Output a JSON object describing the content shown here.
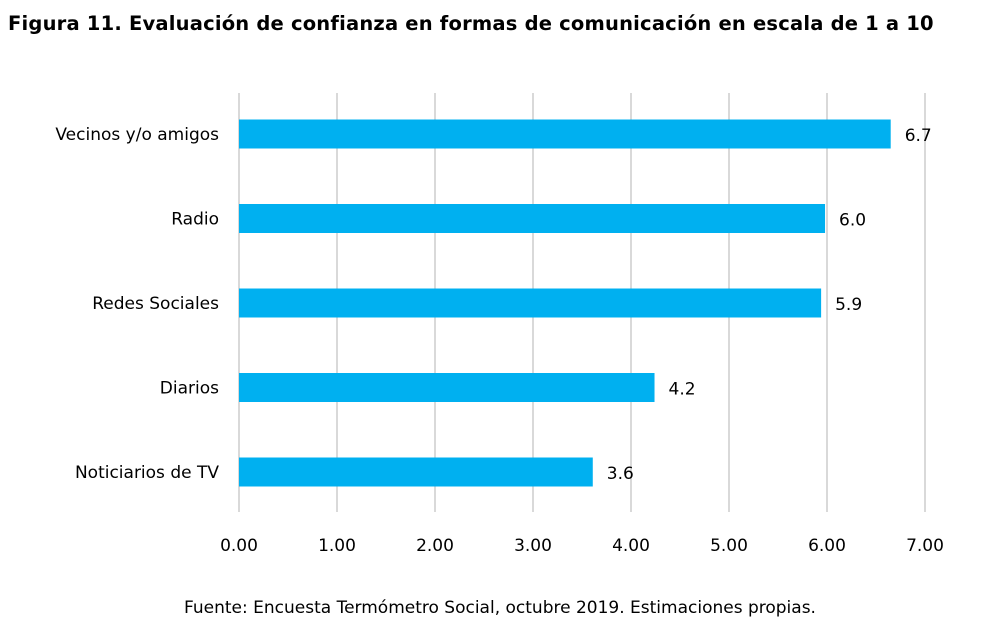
{
  "header": {
    "figure_label": "Figura 11",
    "title_text": ". Evaluación de confianza en formas de comunicación en escala de 1 a 10"
  },
  "footer": {
    "source": "Fuente: Encuesta Termómetro Social, octubre 2019. Estimaciones propias."
  },
  "colors": {
    "bar": "#00B0F0",
    "grid": "#D9D9D9"
  },
  "chart_data": {
    "type": "bar",
    "orientation": "horizontal",
    "categories": [
      "Vecinos y/o amigos",
      "Radio",
      "Redes Sociales",
      "Diarios",
      "Noticiarios de TV"
    ],
    "values": [
      6.65,
      5.98,
      5.94,
      4.24,
      3.61
    ],
    "value_labels": [
      "6.7",
      "6.0",
      "5.9",
      "4.2",
      "3.6"
    ],
    "xlim": [
      0,
      7
    ],
    "x_ticks": [
      0,
      1,
      2,
      3,
      4,
      5,
      6,
      7
    ],
    "x_tick_labels": [
      "0.00",
      "1.00",
      "2.00",
      "3.00",
      "4.00",
      "5.00",
      "6.00",
      "7.00"
    ],
    "grid": "vertical",
    "legend": "none"
  }
}
